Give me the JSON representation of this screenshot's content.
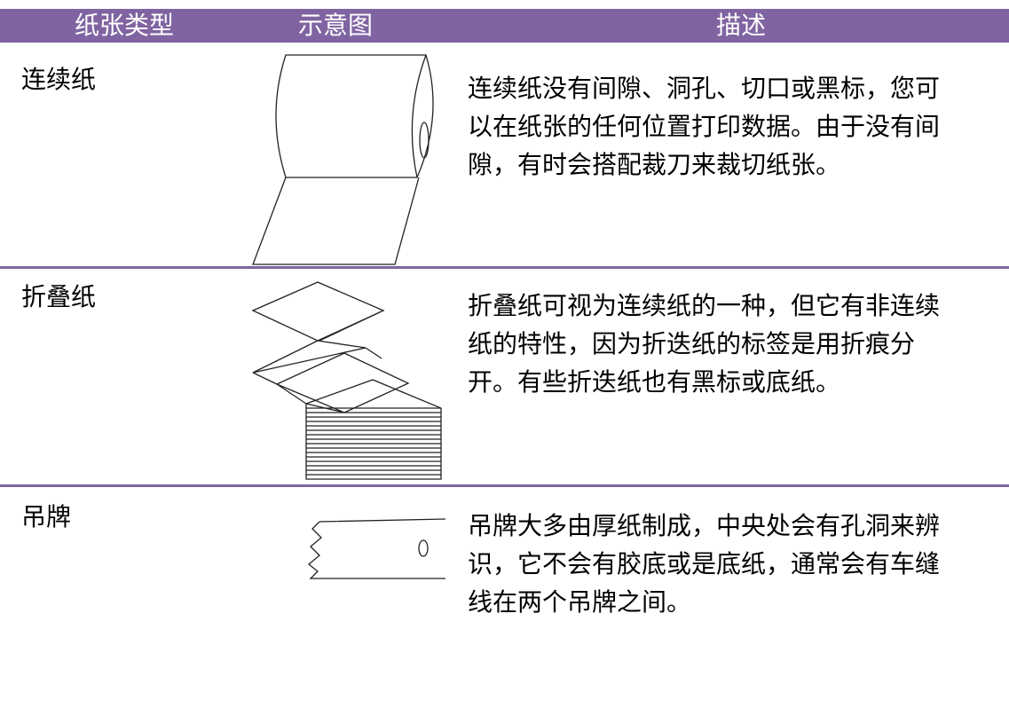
{
  "table": {
    "header": [
      "纸张类型",
      "示意图",
      "描述"
    ],
    "rows": [
      {
        "type": "连续纸",
        "description": [
          "连续纸没有间隙、洞孔、切口或黑标，您可",
          "以在纸张的任何位置打印数据。由于没有间",
          "隙，有时会搭配裁刀来裁切纸张。"
        ]
      },
      {
        "type": "折叠纸",
        "description": [
          "折叠纸可视为连续纸的一种，但它有非连续",
          "纸的特性，因为折迭纸的标签是用折痕分",
          "开。有些折迭纸也有黑标或底纸。"
        ]
      },
      {
        "type": "吊牌",
        "description": [
          "吊牌大多由厚纸制成，中央处会有孔洞来辨",
          "识，它不会有胶底或是底纸，通常会有车缝",
          "线在两个吊牌之间。"
        ]
      }
    ]
  }
}
